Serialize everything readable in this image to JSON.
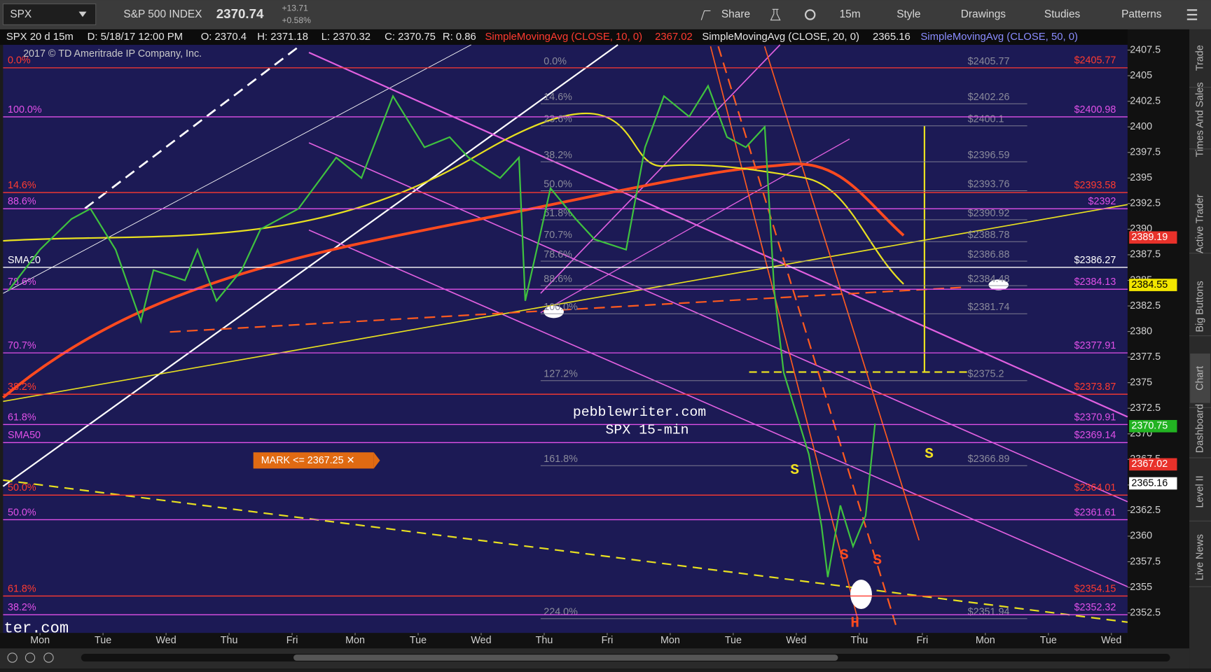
{
  "toolbar": {
    "symbol": "SPX",
    "name": "S&P 500 INDEX",
    "last": "2370.74",
    "change": "+13.71",
    "change_pct": "+0.58%",
    "buttons": [
      "Share",
      "15m",
      "Style",
      "Drawings",
      "Studies",
      "Patterns"
    ]
  },
  "info_bar": {
    "label": "SPX 20 d 15m",
    "date": "D: 5/18/17 12:00 PM",
    "open": "O: 2370.4",
    "high": "H: 2371.18",
    "low": "L: 2370.32",
    "close": "C: 2370.75",
    "range": "R: 0.86",
    "sma10": "SimpleMovingAvg (CLOSE, 10, 0)",
    "sma10_value": "2367.02",
    "sma20": "SimpleMovingAvg (CLOSE, 20, 0)",
    "sma20_value": "2365.16",
    "sma50": "SimpleMovingAvg (CLOSE, 50, 0)"
  },
  "chart_data": {
    "type": "line",
    "color": "#3fc23f",
    "x": [
      0,
      0.5,
      1.0,
      1.3,
      1.7,
      2.1,
      2.3,
      2.8,
      3.0,
      3.3,
      3.7,
      4.0,
      4.6,
      5.2,
      5.6,
      6.1,
      6.6,
      7.0,
      7.3,
      7.8,
      8.1,
      8.2,
      8.6,
      9.0,
      9.3,
      9.8,
      10.1,
      10.4,
      10.8,
      11.1,
      11.4,
      11.7,
      12.0,
      12.15,
      12.3,
      12.5,
      12.7,
      12.9,
      13.0,
      13.2,
      13.4,
      13.6,
      13.75
    ],
    "values": [
      2384,
      2388,
      2391,
      2392,
      2388,
      2381,
      2386,
      2385,
      2388,
      2383,
      2386,
      2390,
      2392,
      2397,
      2395,
      2403,
      2398,
      2399,
      2397,
      2395,
      2397,
      2383,
      2394,
      2391,
      2389,
      2388,
      2398,
      2403,
      2401,
      2404,
      2399,
      2398,
      2400,
      2384,
      2376,
      2372,
      2368,
      2361,
      2356,
      2363,
      2359,
      2362,
      2371
    ],
    "xlim": [
      -0.086,
      17.757
    ],
    "ylim": [
      2350.54,
      2408.02
    ],
    "xticks": [
      {
        "value": 0.5,
        "label": "Mon"
      },
      {
        "value": 1.5,
        "label": "Tue"
      },
      {
        "value": 2.5,
        "label": "Wed"
      },
      {
        "value": 3.5,
        "label": "Thu"
      },
      {
        "value": 4.5,
        "label": "Fri"
      },
      {
        "value": 5.5,
        "label": "Mon"
      },
      {
        "value": 6.5,
        "label": "Tue"
      },
      {
        "value": 7.5,
        "label": "Wed"
      },
      {
        "value": 8.5,
        "label": "Thu"
      },
      {
        "value": 9.5,
        "label": "Fri"
      },
      {
        "value": 10.5,
        "label": "Mon"
      },
      {
        "value": 11.5,
        "label": "Tue"
      },
      {
        "value": 12.5,
        "label": "Wed"
      },
      {
        "value": 13.5,
        "label": "Thu"
      },
      {
        "value": 14.5,
        "label": "Fri"
      },
      {
        "value": 15.5,
        "label": "Mon"
      },
      {
        "value": 16.5,
        "label": "Tue"
      },
      {
        "value": 17.5,
        "label": "Wed"
      }
    ],
    "yticks": [
      2352.5,
      2355,
      2357.5,
      2360,
      2362.5,
      2365,
      2367.5,
      2370,
      2372.5,
      2375,
      2377.5,
      2380,
      2382.5,
      2385,
      2387.5,
      2390,
      2392.5,
      2395,
      2397.5,
      2400,
      2402.5,
      2405,
      2407.5
    ],
    "levels": [
      {
        "value": 2405.77,
        "label": "$2405.77",
        "color": "#ff3b30",
        "left_label": "0.0%"
      },
      {
        "value": 2400.98,
        "label": "$2400.98",
        "color": "#e050e8",
        "left_label": "100.0%"
      },
      {
        "value": 2393.58,
        "label": "$2393.58",
        "color": "#ff3b30",
        "left_label": "14.6%"
      },
      {
        "value": 2392,
        "label": "$2392",
        "color": "#e050e8",
        "left_label": "88.6%"
      },
      {
        "value": 2386.27,
        "label": "$2386.27",
        "color": "#ffffff",
        "left_label": "SMA20"
      },
      {
        "value": 2384.13,
        "label": "$2384.13",
        "color": "#e050e8",
        "left_label": "78.6%"
      },
      {
        "value": 2377.91,
        "label": "$2377.91",
        "color": "#e050e8",
        "left_label": "70.7%"
      },
      {
        "value": 2373.87,
        "label": "$2373.87",
        "color": "#ff3b30",
        "left_label": "38.2%"
      },
      {
        "value": 2370.91,
        "label": "$2370.91",
        "color": "#e050e8",
        "left_label": "61.8%"
      },
      {
        "value": 2369.14,
        "label": "$2369.14",
        "color": "#e050e8",
        "left_label": "SMA50"
      },
      {
        "value": 2364.01,
        "label": "$2364.01",
        "color": "#ff3b30",
        "left_label": "50.0%"
      },
      {
        "value": 2361.61,
        "label": "$2361.61",
        "color": "#e050e8",
        "left_label": "50.0%"
      },
      {
        "value": 2354.15,
        "label": "$2354.15",
        "color": "#ff3b30",
        "left_label": "61.8%"
      },
      {
        "value": 2352.32,
        "label": "$2352.32",
        "color": "#e050e8",
        "left_label": "38.2%"
      }
    ],
    "price_boxes": [
      {
        "value": 2389.19,
        "color": "#e8312a"
      },
      {
        "value": 2384.55,
        "color": "#f2e600"
      },
      {
        "value": 2370.75,
        "color": "#22b322"
      },
      {
        "value": 2367.02,
        "color": "#e8312a"
      },
      {
        "value": 2365.16,
        "color": "#ffffff"
      }
    ],
    "fib_levels": [
      {
        "value": 2405.77,
        "label": "$2405.77",
        "pct": "0.0%"
      },
      {
        "value": 2402.26,
        "label": "$2402.26",
        "pct": "14.6%"
      },
      {
        "value": 2400.1,
        "label": "$2400.1",
        "pct": "23.6%"
      },
      {
        "value": 2396.59,
        "label": "$2396.59",
        "pct": "38.2%"
      },
      {
        "value": 2393.76,
        "label": "$2393.76",
        "pct": "50.0%"
      },
      {
        "value": 2390.92,
        "label": "$2390.92",
        "pct": "61.8%"
      },
      {
        "value": 2388.78,
        "label": "$2388.78",
        "pct": "70.7%"
      },
      {
        "value": 2386.88,
        "label": "$2386.88",
        "pct": "78.6%"
      },
      {
        "value": 2384.48,
        "label": "$2384.48",
        "pct": "88.6%"
      },
      {
        "value": 2381.74,
        "label": "$2381.74",
        "pct": "100.0%"
      },
      {
        "value": 2375.2,
        "label": "$2375.2",
        "pct": "127.2%"
      },
      {
        "value": 2366.89,
        "label": "$2366.89",
        "pct": "161.8%"
      },
      {
        "value": 2351.94,
        "label": "$2351.94",
        "pct": "224.0%"
      }
    ]
  },
  "annotations": {
    "copyright": "2017 © TD Ameritrade IP Company, Inc.",
    "site": "pebblewriter.com",
    "subtitle": "SPX 15-min",
    "site_fragment": "ter.com",
    "alert": "MARK <= 2367.25 ✕",
    "pattern_labels": [
      "S",
      "S",
      "S",
      "S",
      "H"
    ]
  },
  "side_tabs": [
    "Trade",
    "Times And Sales",
    "Active Trader",
    "Big Buttons",
    "Chart",
    "Dashboard",
    "Level II",
    "Live News"
  ]
}
